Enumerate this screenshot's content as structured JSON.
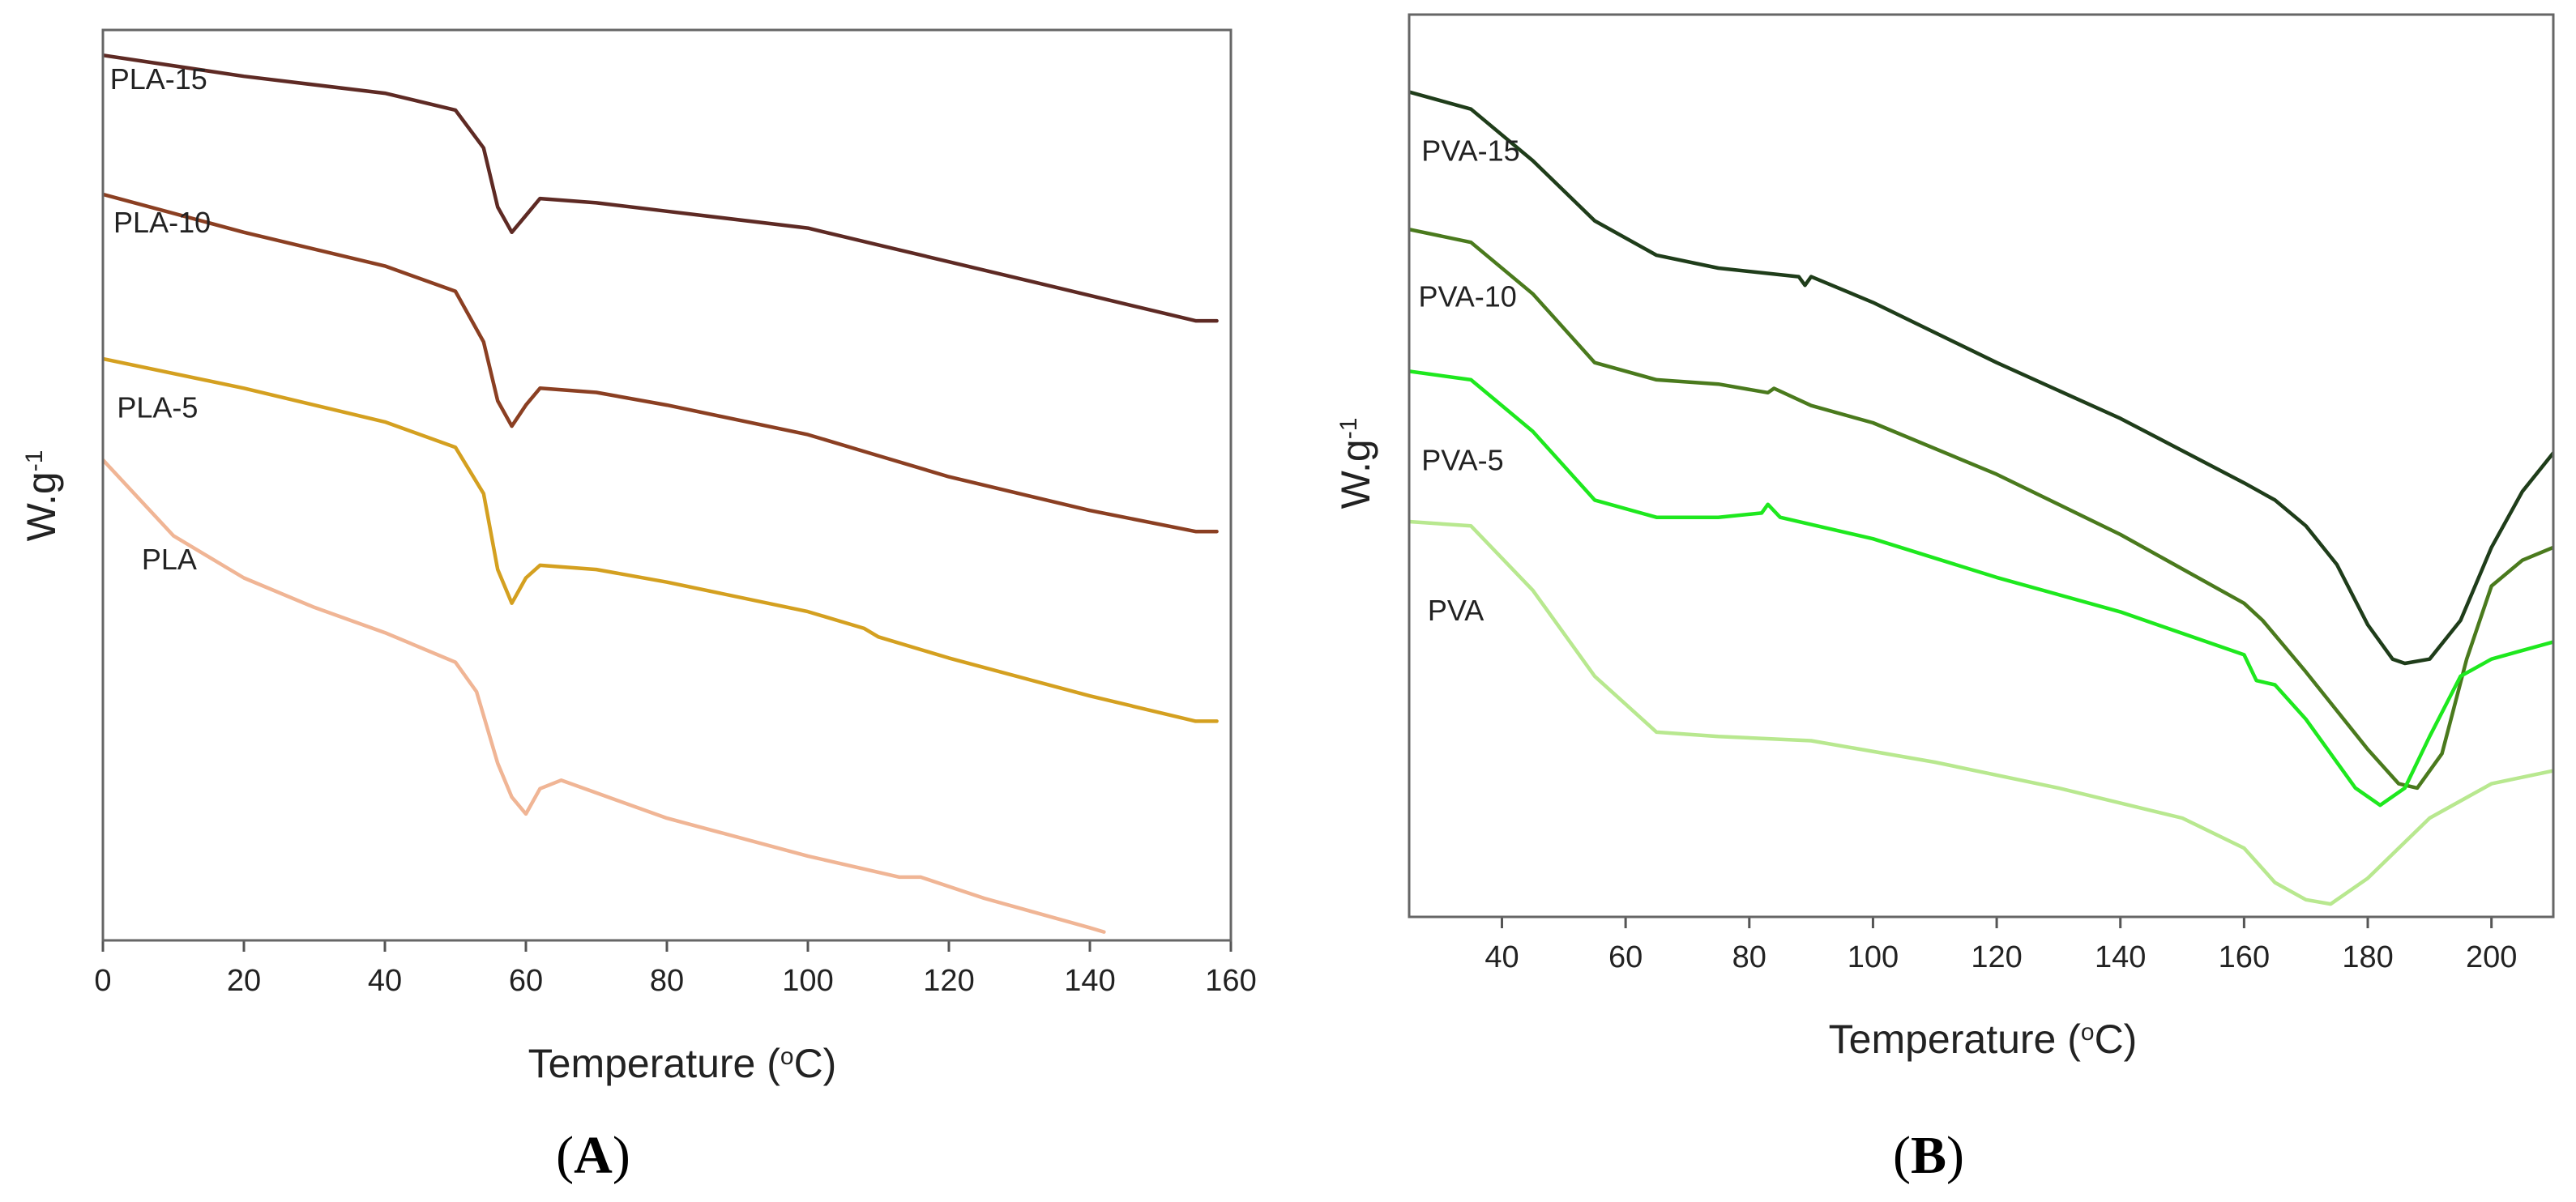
{
  "chart_data": [
    {
      "panel_label": "A",
      "type": "line",
      "title": "",
      "xlabel_main": "Temperature (",
      "xlabel_sup": "o",
      "xlabel_end": "C)",
      "ylabel_main": "W.g",
      "ylabel_sup": "-1",
      "xlim": [
        0,
        160
      ],
      "ylim": [
        -0.5,
        10.3
      ],
      "xticks": [
        "0",
        "20",
        "40",
        "60",
        "80",
        "100",
        "120",
        "140",
        "160"
      ],
      "grid": false,
      "series": [
        {
          "name": "PLA-15",
          "color": "#5e2a24",
          "label_at": [
            1,
            9.6
          ],
          "points": [
            [
              0,
              10.0
            ],
            [
              20,
              9.75
            ],
            [
              40,
              9.55
            ],
            [
              50,
              9.35
            ],
            [
              54,
              8.9
            ],
            [
              56,
              8.2
            ],
            [
              58,
              7.9
            ],
            [
              60,
              8.1
            ],
            [
              62,
              8.3
            ],
            [
              70,
              8.25
            ],
            [
              80,
              8.15
            ],
            [
              100,
              7.95
            ],
            [
              110,
              7.75
            ],
            [
              120,
              7.55
            ],
            [
              140,
              7.15
            ],
            [
              155,
              6.85
            ],
            [
              158,
              6.85
            ]
          ]
        },
        {
          "name": "PLA-10",
          "color": "#8b3f22",
          "label_at": [
            1.5,
            7.9
          ],
          "points": [
            [
              0,
              8.35
            ],
            [
              20,
              7.9
            ],
            [
              40,
              7.5
            ],
            [
              50,
              7.2
            ],
            [
              54,
              6.6
            ],
            [
              56,
              5.9
            ],
            [
              58,
              5.6
            ],
            [
              60,
              5.85
            ],
            [
              62,
              6.05
            ],
            [
              70,
              6.0
            ],
            [
              80,
              5.85
            ],
            [
              100,
              5.5
            ],
            [
              110,
              5.25
            ],
            [
              120,
              5.0
            ],
            [
              140,
              4.6
            ],
            [
              155,
              4.35
            ],
            [
              158,
              4.35
            ]
          ]
        },
        {
          "name": "PLA-5",
          "color": "#d4a020",
          "label_at": [
            2,
            5.7
          ],
          "points": [
            [
              0,
              6.4
            ],
            [
              20,
              6.05
            ],
            [
              40,
              5.65
            ],
            [
              50,
              5.35
            ],
            [
              54,
              4.8
            ],
            [
              56,
              3.9
            ],
            [
              58,
              3.5
            ],
            [
              60,
              3.8
            ],
            [
              62,
              3.95
            ],
            [
              70,
              3.9
            ],
            [
              80,
              3.75
            ],
            [
              100,
              3.4
            ],
            [
              108,
              3.2
            ],
            [
              110,
              3.1
            ],
            [
              120,
              2.85
            ],
            [
              140,
              2.4
            ],
            [
              155,
              2.1
            ],
            [
              158,
              2.1
            ]
          ]
        },
        {
          "name": "PLA",
          "color": "#f0b595",
          "label_at": [
            5.5,
            3.9
          ],
          "points": [
            [
              0,
              5.2
            ],
            [
              10,
              4.3
            ],
            [
              20,
              3.8
            ],
            [
              30,
              3.45
            ],
            [
              40,
              3.15
            ],
            [
              50,
              2.8
            ],
            [
              53,
              2.45
            ],
            [
              56,
              1.6
            ],
            [
              58,
              1.2
            ],
            [
              60,
              1.0
            ],
            [
              62,
              1.3
            ],
            [
              65,
              1.4
            ],
            [
              70,
              1.25
            ],
            [
              80,
              0.95
            ],
            [
              100,
              0.5
            ],
            [
              113,
              0.25
            ],
            [
              116,
              0.25
            ],
            [
              125,
              0.0
            ],
            [
              140,
              -0.35
            ],
            [
              142,
              -0.4
            ]
          ]
        }
      ]
    },
    {
      "panel_label": "B",
      "type": "line",
      "title": "",
      "xlabel_main": "Temperature (",
      "xlabel_sup": "o",
      "xlabel_end": "C)",
      "ylabel_main": "W.g",
      "ylabel_sup": "-1",
      "xlim": [
        25,
        210
      ],
      "ylim": [
        -0.5,
        10.0
      ],
      "xticks": [
        "40",
        "60",
        "80",
        "100",
        "120",
        "140",
        "160",
        "180",
        "200"
      ],
      "grid": false,
      "series": [
        {
          "name": "PVA-15",
          "color": "#1f3d1a",
          "label_at": [
            27,
            8.3
          ],
          "points": [
            [
              25,
              9.1
            ],
            [
              35,
              8.9
            ],
            [
              45,
              8.3
            ],
            [
              55,
              7.6
            ],
            [
              65,
              7.2
            ],
            [
              75,
              7.05
            ],
            [
              88,
              6.95
            ],
            [
              89,
              6.85
            ],
            [
              90,
              6.95
            ],
            [
              100,
              6.65
            ],
            [
              120,
              5.95
            ],
            [
              140,
              5.3
            ],
            [
              160,
              4.55
            ],
            [
              165,
              4.35
            ],
            [
              170,
              4.05
            ],
            [
              175,
              3.6
            ],
            [
              180,
              2.9
            ],
            [
              184,
              2.5
            ],
            [
              186,
              2.45
            ],
            [
              190,
              2.5
            ],
            [
              195,
              2.95
            ],
            [
              200,
              3.8
            ],
            [
              205,
              4.45
            ],
            [
              210,
              4.9
            ]
          ]
        },
        {
          "name": "PVA-10",
          "color": "#4a7a1d",
          "label_at": [
            26.5,
            6.6
          ],
          "points": [
            [
              25,
              7.5
            ],
            [
              35,
              7.35
            ],
            [
              45,
              6.75
            ],
            [
              55,
              5.95
            ],
            [
              65,
              5.75
            ],
            [
              75,
              5.7
            ],
            [
              83,
              5.6
            ],
            [
              84,
              5.65
            ],
            [
              90,
              5.45
            ],
            [
              100,
              5.25
            ],
            [
              120,
              4.65
            ],
            [
              140,
              3.95
            ],
            [
              160,
              3.15
            ],
            [
              163,
              2.95
            ],
            [
              170,
              2.35
            ],
            [
              180,
              1.45
            ],
            [
              185,
              1.05
            ],
            [
              188,
              1.0
            ],
            [
              192,
              1.4
            ],
            [
              196,
              2.5
            ],
            [
              200,
              3.35
            ],
            [
              205,
              3.65
            ],
            [
              210,
              3.8
            ]
          ]
        },
        {
          "name": "PVA-5",
          "color": "#1ee81e",
          "label_at": [
            27,
            4.7
          ],
          "points": [
            [
              25,
              5.85
            ],
            [
              35,
              5.75
            ],
            [
              45,
              5.15
            ],
            [
              55,
              4.35
            ],
            [
              65,
              4.15
            ],
            [
              75,
              4.15
            ],
            [
              82,
              4.2
            ],
            [
              83,
              4.3
            ],
            [
              85,
              4.15
            ],
            [
              100,
              3.9
            ],
            [
              120,
              3.45
            ],
            [
              140,
              3.05
            ],
            [
              160,
              2.55
            ],
            [
              162,
              2.25
            ],
            [
              165,
              2.2
            ],
            [
              170,
              1.8
            ],
            [
              178,
              1.0
            ],
            [
              182,
              0.8
            ],
            [
              186,
              1.0
            ],
            [
              190,
              1.6
            ],
            [
              195,
              2.3
            ],
            [
              200,
              2.5
            ],
            [
              205,
              2.6
            ],
            [
              210,
              2.7
            ]
          ]
        },
        {
          "name": "PVA",
          "color": "#b8e88f",
          "label_at": [
            28,
            2.95
          ],
          "points": [
            [
              25,
              4.1
            ],
            [
              35,
              4.05
            ],
            [
              45,
              3.3
            ],
            [
              55,
              2.3
            ],
            [
              65,
              1.65
            ],
            [
              75,
              1.6
            ],
            [
              90,
              1.55
            ],
            [
              110,
              1.3
            ],
            [
              130,
              1.0
            ],
            [
              150,
              0.65
            ],
            [
              160,
              0.3
            ],
            [
              165,
              -0.1
            ],
            [
              170,
              -0.3
            ],
            [
              174,
              -0.35
            ],
            [
              180,
              -0.05
            ],
            [
              190,
              0.65
            ],
            [
              200,
              1.05
            ],
            [
              210,
              1.2
            ]
          ]
        }
      ]
    }
  ]
}
